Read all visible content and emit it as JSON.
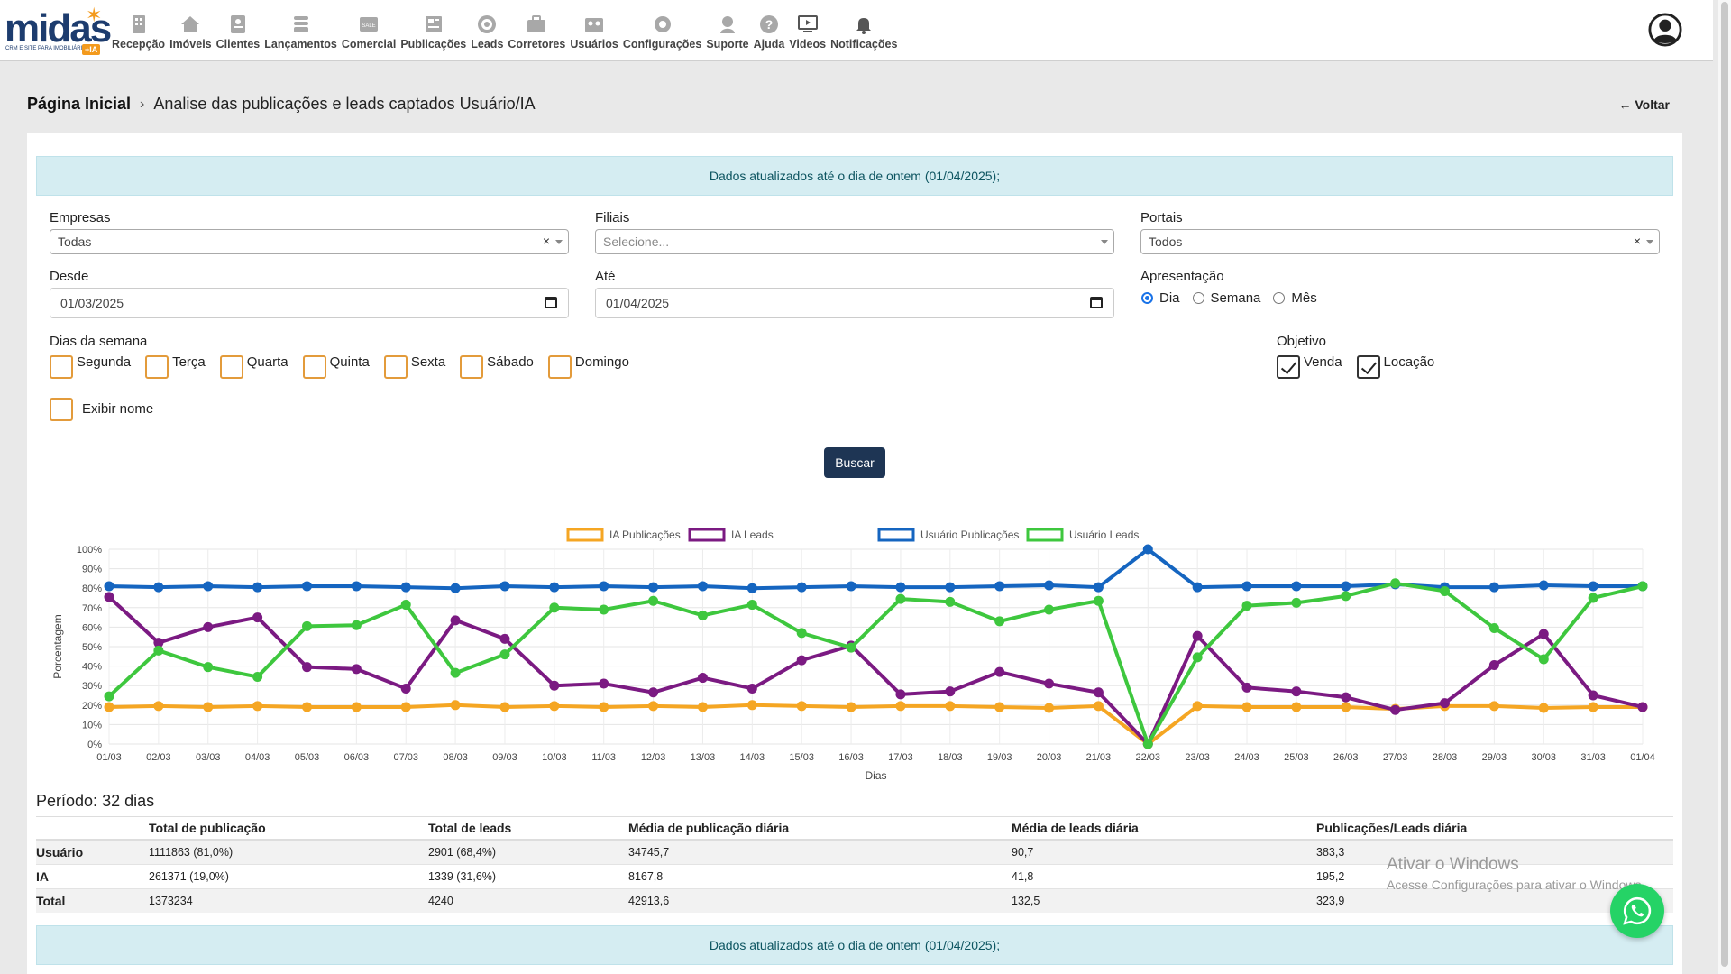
{
  "brand": {
    "name": "midas",
    "tagline": "CRM E SITE PARA IMOBILIÁRIA",
    "badge": "+IA"
  },
  "nav": [
    {
      "label": "Recepção",
      "icon": "building-icon"
    },
    {
      "label": "Imóveis",
      "icon": "house-icon"
    },
    {
      "label": "Clientes",
      "icon": "contact-card-icon"
    },
    {
      "label": "Lançamentos",
      "icon": "tower-icon"
    },
    {
      "label": "Comercial",
      "icon": "sale-tag-icon"
    },
    {
      "label": "Publicações",
      "icon": "newspaper-icon"
    },
    {
      "label": "Leads",
      "icon": "target-icon"
    },
    {
      "label": "Corretores",
      "icon": "briefcase-icon"
    },
    {
      "label": "Usuários",
      "icon": "users-icon"
    },
    {
      "label": "Configurações",
      "icon": "gear-icon"
    },
    {
      "label": "Suporte",
      "icon": "support-agent-icon"
    },
    {
      "label": "Ajuda",
      "icon": "help-icon"
    },
    {
      "label": "Videos",
      "icon": "video-icon"
    },
    {
      "label": "Notificações",
      "icon": "bell-icon"
    }
  ],
  "breadcrumb": {
    "home": "Página Inicial",
    "current": "Analise das publicações e leads captados Usuário/IA"
  },
  "back_label": "← Voltar",
  "alert_text": "Dados atualizados até o dia de ontem (01/04/2025);",
  "filters": {
    "empresas": {
      "label": "Empresas",
      "value": "Todas"
    },
    "filiais": {
      "label": "Filiais",
      "placeholder": "Selecione..."
    },
    "portais": {
      "label": "Portais",
      "value": "Todos"
    },
    "desde": {
      "label": "Desde",
      "value": "01/03/2025"
    },
    "ate": {
      "label": "Até",
      "value": "01/04/2025"
    },
    "apresentacao": {
      "label": "Apresentação",
      "options": [
        "Dia",
        "Semana",
        "Mês"
      ],
      "selected": "Dia"
    },
    "dias_label": "Dias da semana",
    "dias": [
      "Segunda",
      "Terça",
      "Quarta",
      "Quinta",
      "Sexta",
      "Sábado",
      "Domingo"
    ],
    "objetivo": {
      "label": "Objetivo",
      "options": [
        "Venda",
        "Locação"
      ]
    },
    "exibir_nome": "Exibir nome",
    "clear_symbol": "×"
  },
  "buscar_label": "Buscar",
  "colors": {
    "ia_pub": "#f5a623",
    "ia_leads": "#7b1a82",
    "user_pub": "#1565c0",
    "user_leads": "#3ec73e",
    "accent": "#1e3554"
  },
  "chart_data": {
    "type": "line",
    "x": [
      "01/03",
      "02/03",
      "03/03",
      "04/03",
      "05/03",
      "06/03",
      "07/03",
      "08/03",
      "09/03",
      "10/03",
      "11/03",
      "12/03",
      "13/03",
      "14/03",
      "15/03",
      "16/03",
      "17/03",
      "18/03",
      "19/03",
      "20/03",
      "21/03",
      "22/03",
      "23/03",
      "24/03",
      "25/03",
      "26/03",
      "27/03",
      "28/03",
      "29/03",
      "30/03",
      "31/03",
      "01/04"
    ],
    "xlabel": "Dias",
    "ylabel": "Porcentagem",
    "ylim": [
      0,
      100
    ],
    "yticks": [
      "0%",
      "10%",
      "20%",
      "30%",
      "40%",
      "50%",
      "60%",
      "70%",
      "80%",
      "90%",
      "100%"
    ],
    "grid": true,
    "legend": "top",
    "series": [
      {
        "name": "IA Publicações",
        "color": "#f5a623",
        "values": [
          19,
          19.5,
          19,
          19.5,
          19,
          19,
          19,
          20,
          19,
          19.5,
          19,
          19.5,
          19,
          20,
          19.5,
          19,
          19.5,
          19.5,
          19,
          18.5,
          19.5,
          0,
          19.5,
          19,
          19,
          19,
          18,
          19.5,
          19.5,
          18.5,
          19,
          19
        ]
      },
      {
        "name": "IA Leads",
        "color": "#7b1a82",
        "values": [
          75.5,
          52,
          60,
          65,
          39.5,
          38.5,
          28.5,
          63.5,
          54,
          30,
          31,
          26.5,
          34,
          28.5,
          43,
          50.5,
          25.5,
          27,
          37,
          31,
          26.5,
          0,
          55.5,
          29,
          27,
          24,
          17.5,
          21,
          40.5,
          56.5,
          25,
          19
        ]
      },
      {
        "name": "Usuário Publicações",
        "color": "#1565c0",
        "values": [
          81,
          80.5,
          81,
          80.5,
          81,
          81,
          80.5,
          80,
          81,
          80.5,
          81,
          80.5,
          81,
          80,
          80.5,
          81,
          80.5,
          80.5,
          81,
          81.5,
          80.5,
          100,
          80.5,
          81,
          81,
          81,
          82,
          80.5,
          80.5,
          81.5,
          81,
          81
        ]
      },
      {
        "name": "Usuário Leads",
        "color": "#3ec73e",
        "values": [
          24.5,
          48,
          39.5,
          34.5,
          60.5,
          61,
          71.5,
          36.5,
          46,
          70,
          69,
          73.5,
          66,
          71.5,
          57,
          49.5,
          74.5,
          73,
          63,
          69,
          73.5,
          0,
          44.5,
          71,
          72.5,
          76,
          82.5,
          78.5,
          59.5,
          43.5,
          75,
          81
        ]
      }
    ]
  },
  "periodo": {
    "label": "Período:",
    "value": "32 dias"
  },
  "summary": {
    "headers": [
      "",
      "Total de publicação",
      "Total de leads",
      "Média de publicação diária",
      "Média de leads diária",
      "Publicações/Leads diária"
    ],
    "rows": [
      [
        "Usuário",
        "1111863 (81,0%)",
        "2901 (68,4%)",
        "34745,7",
        "90,7",
        "383,3"
      ],
      [
        "IA",
        "261371 (19,0%)",
        "1339 (31,6%)",
        "8167,8",
        "41,8",
        "195,2"
      ],
      [
        "Total",
        "1373234",
        "4240",
        "42913,6",
        "132,5",
        "323,9"
      ]
    ]
  },
  "activate_windows": {
    "title": "Ativar o Windows",
    "subtitle": "Acesse Configurações para ativar o Windows."
  }
}
